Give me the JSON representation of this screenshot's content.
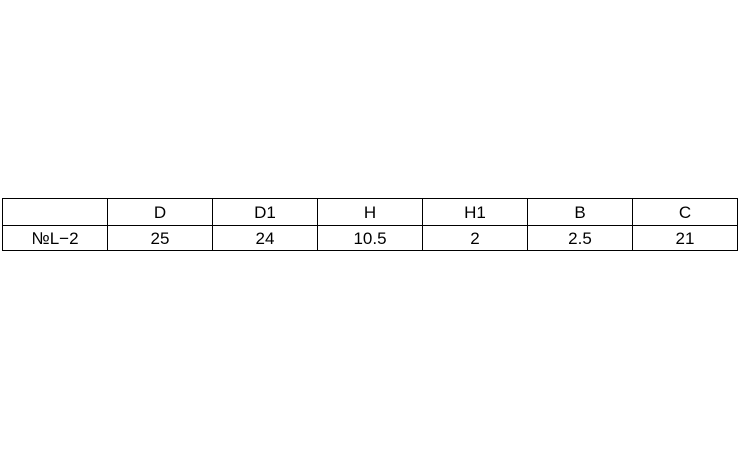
{
  "table": {
    "headers": [
      "",
      "D",
      "D1",
      "H",
      "H1",
      "B",
      "C"
    ],
    "rows": [
      [
        "№L−2",
        "25",
        "24",
        "10.5",
        "2",
        "2.5",
        "21"
      ]
    ]
  }
}
